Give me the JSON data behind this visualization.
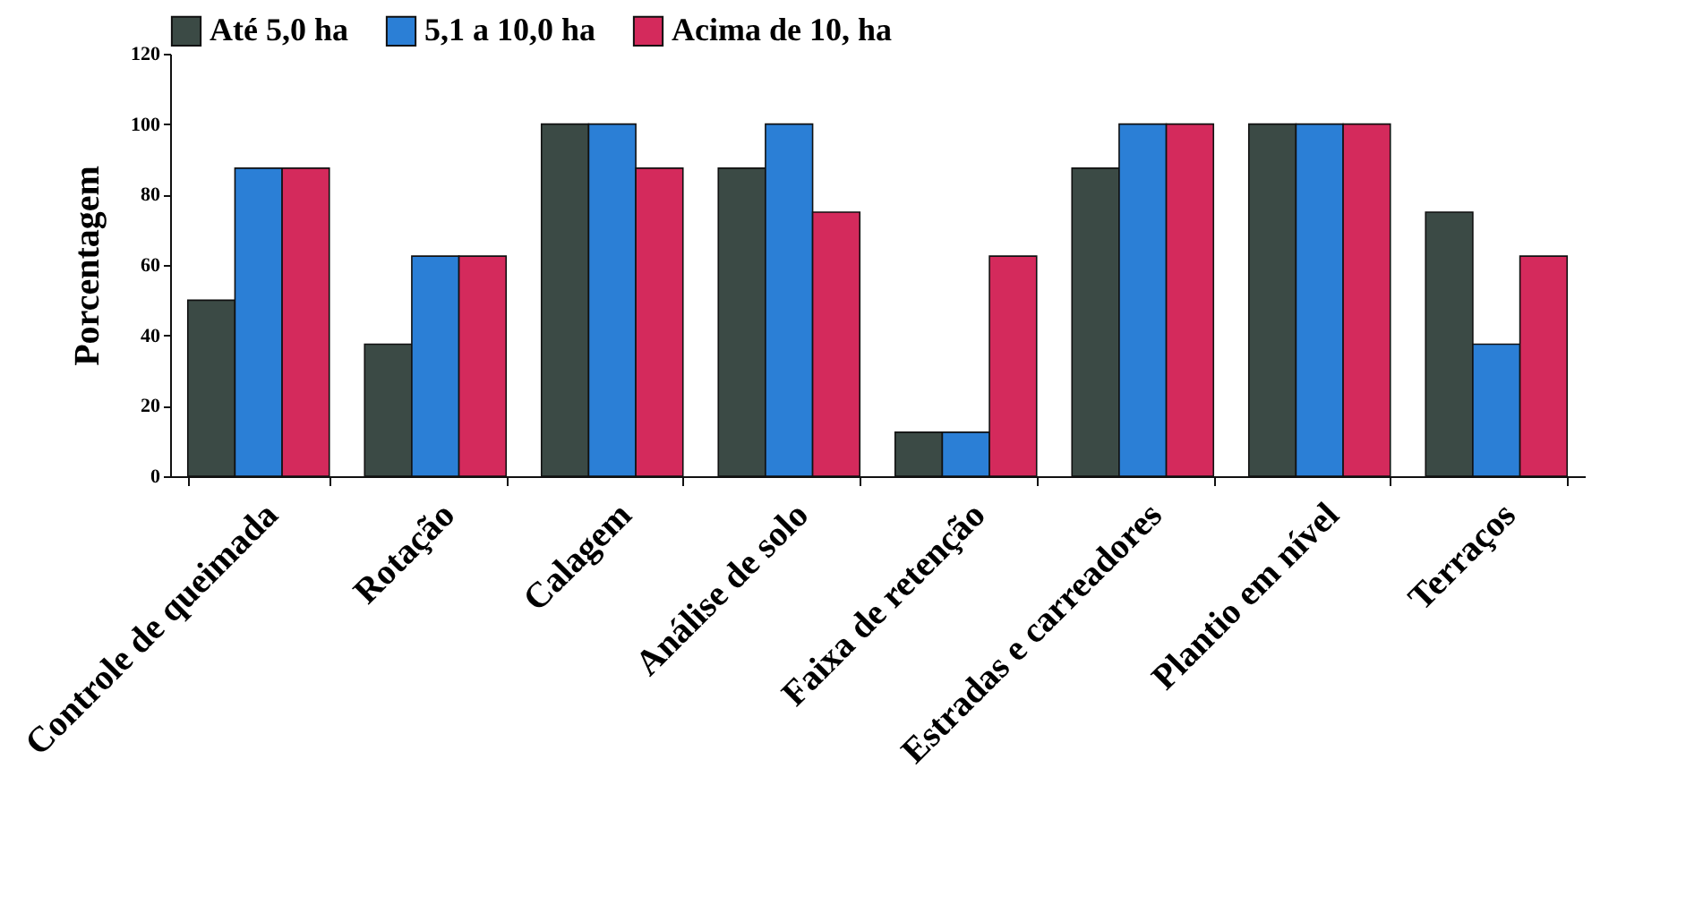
{
  "chart_data": {
    "type": "bar",
    "ylabel": "Porcentagem",
    "categories": [
      "Controle de queimada",
      "Rotação",
      "Calagem",
      "Análise de solo",
      "Faixa de retenção",
      "Estradas e carreadores",
      "Plantio em nível",
      "Terraços"
    ],
    "series": [
      {
        "name": "Até 5,0 ha",
        "color": "#3b4a45",
        "values": [
          50,
          37.5,
          100,
          87.5,
          12.5,
          87.5,
          100,
          75
        ]
      },
      {
        "name": "5,1 a 10,0 ha",
        "color": "#2b7fd6",
        "values": [
          87.5,
          62.5,
          100,
          100,
          12.5,
          100,
          100,
          37.5
        ]
      },
      {
        "name": "Acima de 10, ha",
        "color": "#d42a5c",
        "values": [
          87.5,
          62.5,
          87.5,
          75,
          62.5,
          100,
          100,
          62.5
        ]
      }
    ],
    "ylim": [
      0,
      120
    ],
    "yticks": [
      0,
      20,
      40,
      60,
      80,
      100,
      120
    ],
    "grid": false,
    "legend": "top"
  }
}
